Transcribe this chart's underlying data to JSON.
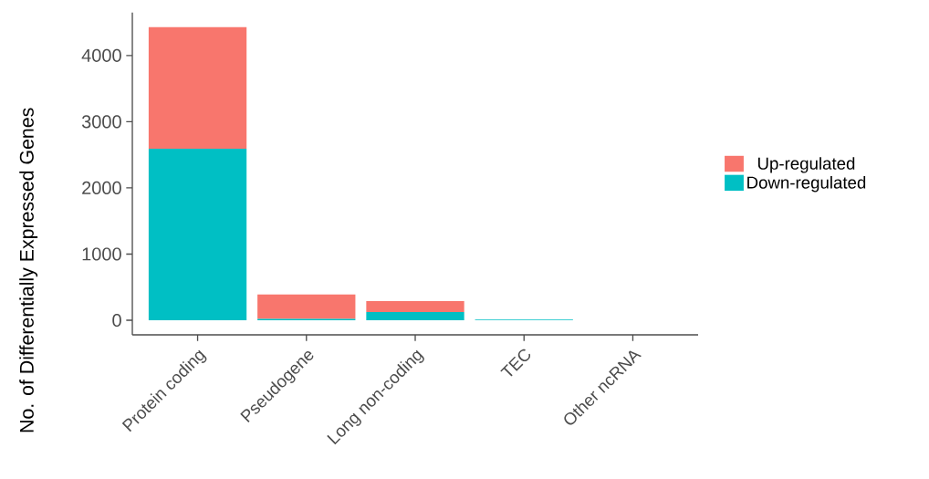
{
  "chart_data": {
    "type": "bar",
    "stacked": true,
    "ylabel": "No. of Differentially Expressed Genes",
    "categories": [
      "Protein coding",
      "Pseudogene",
      "Long non-coding",
      "TEC",
      "Other ncRNA"
    ],
    "series": [
      {
        "name": "Down-regulated",
        "color": "#00bfc4",
        "values": [
          2590,
          20,
          125,
          10,
          0
        ]
      },
      {
        "name": "Up-regulated",
        "color": "#f8766d",
        "values": [
          1840,
          370,
          165,
          0,
          0
        ]
      }
    ],
    "ylim": [
      -220,
      4650
    ],
    "yticks": [
      0,
      1000,
      2000,
      3000,
      4000
    ],
    "grid": false,
    "legend": "right"
  }
}
